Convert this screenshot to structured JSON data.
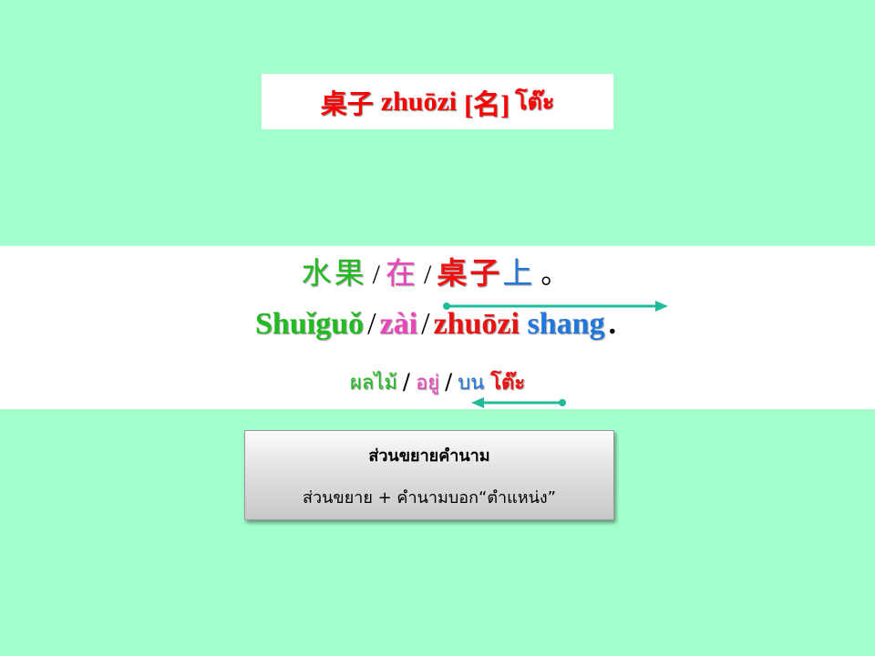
{
  "title": {
    "hanzi": "桌子",
    "pinyin": "zhuōzi",
    "pos": "[名]",
    "thai": "โต๊ะ"
  },
  "example": {
    "hanzi": {
      "w1": "水果",
      "sep": "/",
      "w2": "在",
      "w3": "桌子",
      "w4": "上",
      "end": "。"
    },
    "pinyin": {
      "w1": "Shuǐguǒ",
      "sep": "/",
      "w2": "zài",
      "w3": "zhuōzi",
      "w4": "shang",
      "end": "."
    },
    "thai": {
      "w1": "ผลไม้",
      "sep": "/",
      "w2": "อยู่",
      "w3": "บน",
      "w4": "โต๊ะ"
    }
  },
  "note": {
    "title": "ส่วนขยายคำนาม",
    "body": "ส่วนขยาย + คำนามบอก“ตำแหน่ง”"
  },
  "colors": {
    "background": "#a2ffcc",
    "word1": "#22bb22",
    "word2": "#ee44bb",
    "word3": "#ee1111",
    "word4": "#2277dd",
    "arrow": "#22bb99"
  }
}
